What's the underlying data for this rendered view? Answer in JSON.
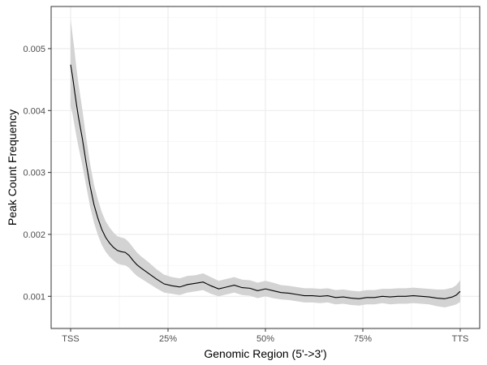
{
  "chart_data": {
    "type": "line",
    "xlabel": "Genomic Region (5'->3')",
    "ylabel": "Peak Count Frequency",
    "x_ticks": [
      {
        "x": 0,
        "label": "TSS"
      },
      {
        "x": 25,
        "label": "25%"
      },
      {
        "x": 50,
        "label": "50%"
      },
      {
        "x": 75,
        "label": "75%"
      },
      {
        "x": 100,
        "label": "TTS"
      }
    ],
    "y_ticks": [
      {
        "y": 0.001,
        "label": "0.001"
      },
      {
        "y": 0.002,
        "label": "0.002"
      },
      {
        "y": 0.003,
        "label": "0.003"
      },
      {
        "y": 0.004,
        "label": "0.004"
      },
      {
        "y": 0.005,
        "label": "0.005"
      }
    ],
    "xlim": [
      -5,
      105
    ],
    "ylim": [
      0.00048,
      0.00568
    ],
    "grid": true,
    "series": [
      {
        "color": "#000000",
        "band_color": "#d3d3d3",
        "x": [
          0,
          0.5,
          1,
          1.5,
          2,
          3,
          4,
          5,
          6,
          7,
          8,
          9,
          10,
          11,
          12,
          13,
          14,
          15,
          16,
          17,
          18,
          20,
          22,
          24,
          26,
          28,
          30,
          32,
          34,
          36,
          38,
          40,
          42,
          44,
          46,
          48,
          50,
          52,
          54,
          56,
          58,
          60,
          62,
          64,
          66,
          68,
          70,
          72,
          74,
          76,
          78,
          80,
          82,
          84,
          86,
          88,
          90,
          92,
          94,
          96,
          98,
          99,
          100
        ],
        "y": [
          0.00474,
          0.00455,
          0.00432,
          0.0041,
          0.0039,
          0.00355,
          0.00315,
          0.00278,
          0.00248,
          0.00226,
          0.00208,
          0.00195,
          0.00186,
          0.00179,
          0.00174,
          0.00172,
          0.00171,
          0.00166,
          0.00158,
          0.00151,
          0.00146,
          0.00137,
          0.00128,
          0.0012,
          0.00117,
          0.00115,
          0.00119,
          0.00121,
          0.00123,
          0.00117,
          0.00112,
          0.00115,
          0.00118,
          0.00114,
          0.00113,
          0.00109,
          0.00112,
          0.00109,
          0.00106,
          0.00105,
          0.00103,
          0.00101,
          0.00101,
          0.001,
          0.00101,
          0.00098,
          0.00099,
          0.00097,
          0.00096,
          0.00098,
          0.00098,
          0.001,
          0.00099,
          0.001,
          0.001,
          0.00101,
          0.001,
          0.00099,
          0.00097,
          0.00096,
          0.00099,
          0.00102,
          0.00108
        ],
        "upper": [
          0.00548,
          0.00522,
          0.00497,
          0.00468,
          0.00444,
          0.00402,
          0.00356,
          0.00314,
          0.0028,
          0.00256,
          0.00236,
          0.00221,
          0.00211,
          0.00203,
          0.00197,
          0.00195,
          0.00193,
          0.00187,
          0.00179,
          0.00171,
          0.00165,
          0.00155,
          0.00144,
          0.00135,
          0.00131,
          0.00129,
          0.00133,
          0.00134,
          0.00137,
          0.00131,
          0.00125,
          0.00128,
          0.00131,
          0.00127,
          0.00126,
          0.00122,
          0.00125,
          0.00122,
          0.00118,
          0.00117,
          0.00115,
          0.00113,
          0.00113,
          0.00112,
          0.00113,
          0.0011,
          0.00111,
          0.00109,
          0.00108,
          0.0011,
          0.0011,
          0.00112,
          0.00112,
          0.00113,
          0.00113,
          0.00114,
          0.00113,
          0.00112,
          0.00111,
          0.00111,
          0.00114,
          0.00118,
          0.00126
        ],
        "lower": [
          0.00408,
          0.00394,
          0.00376,
          0.00358,
          0.00342,
          0.00312,
          0.00278,
          0.00245,
          0.00219,
          0.00199,
          0.00183,
          0.00172,
          0.00164,
          0.00158,
          0.00153,
          0.00151,
          0.0015,
          0.00146,
          0.00139,
          0.00133,
          0.00129,
          0.00121,
          0.00113,
          0.00106,
          0.00104,
          0.00102,
          0.00106,
          0.00108,
          0.0011,
          0.00104,
          0.001,
          0.00103,
          0.00106,
          0.00102,
          0.00101,
          0.00097,
          0.001,
          0.00097,
          0.00095,
          0.00094,
          0.00092,
          0.0009,
          0.0009,
          0.00089,
          0.0009,
          0.00087,
          0.00088,
          0.00086,
          0.00085,
          0.00087,
          0.00087,
          0.00089,
          0.00087,
          0.00088,
          0.00088,
          0.00089,
          0.00088,
          0.00087,
          0.00084,
          0.00082,
          0.00085,
          0.00087,
          0.00091
        ]
      }
    ]
  }
}
